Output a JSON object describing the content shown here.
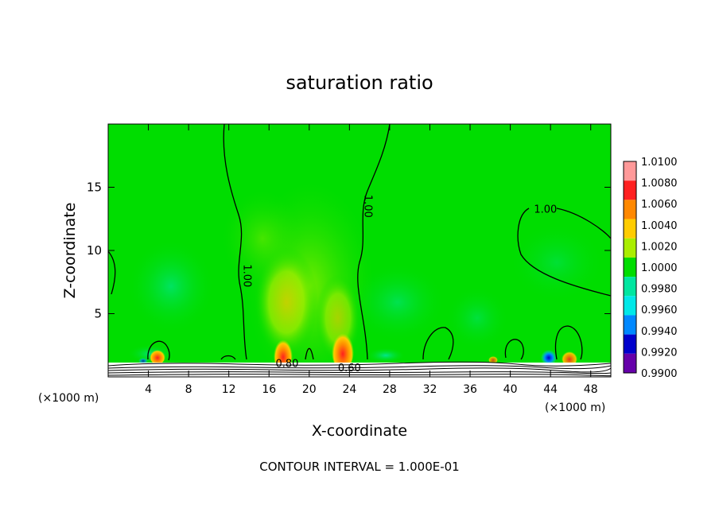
{
  "chart_data": {
    "type": "heatmap",
    "title": "saturation ratio",
    "xlabel": "X-coordinate",
    "ylabel": "Z-coordinate",
    "x_unit_left": "(×1000 m)",
    "x_unit_right": "(×1000 m)",
    "footer": "CONTOUR INTERVAL = 1.000E-01",
    "xlim": [
      0,
      50
    ],
    "ylim": [
      0,
      20
    ],
    "x_ticks": [
      4,
      8,
      12,
      16,
      20,
      24,
      28,
      32,
      36,
      40,
      44,
      48
    ],
    "y_ticks": [
      5,
      10,
      15
    ],
    "contour_labels": [
      {
        "text": "1.00",
        "x": 13.5,
        "y": 8.0,
        "angle": 90
      },
      {
        "text": "1.00",
        "x": 25.5,
        "y": 13.5,
        "angle": 90
      },
      {
        "text": "1.00",
        "x": 43.5,
        "y": 13.0,
        "angle": 0
      },
      {
        "text": "0.80",
        "x": 17.8,
        "y": 0.8,
        "angle": 0
      },
      {
        "text": "0.60",
        "x": 24.0,
        "y": 0.45,
        "angle": 0
      }
    ],
    "colorbar": {
      "levels": [
        "1.0100",
        "1.0080",
        "1.0060",
        "1.0040",
        "1.0020",
        "1.0000",
        "0.9980",
        "0.9960",
        "0.9940",
        "0.9920",
        "0.9900"
      ],
      "colors": [
        "#ff9999",
        "#ff2020",
        "#ff8800",
        "#ffcc00",
        "#aaee00",
        "#00dd00",
        "#00e6a0",
        "#00e8e8",
        "#0088ff",
        "#0000cc",
        "#6600aa"
      ]
    },
    "field_description_hotspots": [
      {
        "x": 17.5,
        "z": 1.2,
        "value": 1.008
      },
      {
        "x": 23.5,
        "z": 1.3,
        "value": 1.009
      },
      {
        "x": 5.0,
        "z": 1.2,
        "value": 1.006
      },
      {
        "x": 44.0,
        "z": 1.1,
        "value": 0.994
      },
      {
        "x": 46.0,
        "z": 1.1,
        "value": 1.004
      }
    ]
  }
}
